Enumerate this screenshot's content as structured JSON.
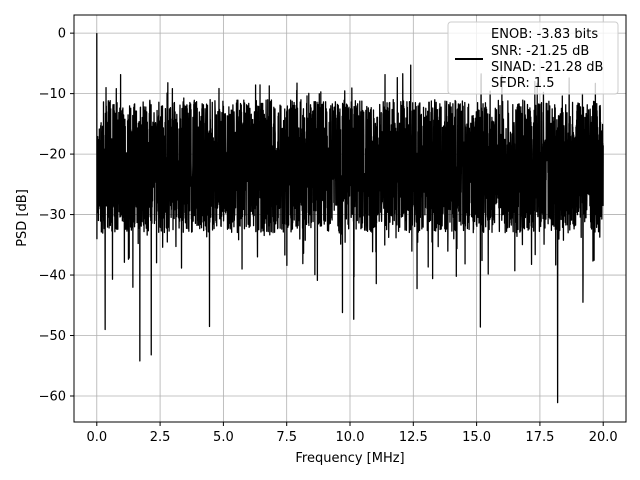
{
  "chart_data": {
    "type": "line",
    "xlabel": "Frequency [MHz]",
    "ylabel": "PSD [dB]",
    "xlim": [
      -0.9,
      20.9
    ],
    "ylim": [
      -64.3,
      3.0
    ],
    "grid": true,
    "xticks": [
      0.0,
      2.5,
      5.0,
      7.5,
      10.0,
      12.5,
      15.0,
      17.5,
      20.0
    ],
    "xtick_labels": [
      "0.0",
      "2.5",
      "5.0",
      "7.5",
      "10.0",
      "12.5",
      "15.0",
      "17.5",
      "20.0"
    ],
    "yticks": [
      0,
      -10,
      -20,
      -30,
      -40,
      -50,
      -60
    ],
    "ytick_labels": [
      "0",
      "−10",
      "−20",
      "−30",
      "−40",
      "−50",
      "−60"
    ],
    "legend_position": "top-right",
    "legend": [
      "ENOB: -3.83 bits",
      "SNR: -21.25 dB",
      "SINAD: -21.28 dB",
      "SFDR: 1.5"
    ],
    "series": [
      {
        "color": "#000000",
        "note_x_range": [
          0.0,
          20.0
        ],
        "peak_points": [
          [
            0.0,
            0.0
          ]
        ],
        "dip_points": [
          [
            0.33,
            -49.0
          ],
          [
            1.7,
            -54.2
          ],
          [
            2.15,
            -53.2
          ],
          [
            4.45,
            -48.5
          ],
          [
            9.7,
            -46.2
          ],
          [
            10.15,
            -47.3
          ],
          [
            15.15,
            -48.6
          ],
          [
            18.2,
            -61.1
          ],
          [
            19.2,
            -44.5
          ]
        ],
        "noise_floor_range": [
          -33,
          -11
        ],
        "spur_points": [
          [
            12.4,
            -5.3
          ],
          [
            16.0,
            -7.0
          ],
          [
            17.3,
            -8.0
          ]
        ]
      }
    ]
  }
}
